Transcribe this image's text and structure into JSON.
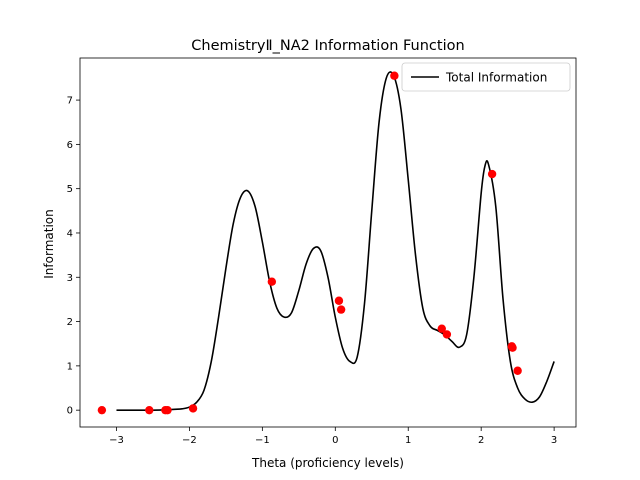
{
  "chart_data": {
    "type": "line",
    "title": "ChemistryⅡ_NA2 Information Function",
    "xlabel": "Theta (proficiency levels)",
    "ylabel": "Information",
    "xlim": [
      -3.5,
      3.3
    ],
    "ylim": [
      -0.38,
      7.95
    ],
    "xticks": [
      -3,
      -2,
      -1,
      0,
      1,
      2,
      3
    ],
    "yticks": [
      0,
      1,
      2,
      3,
      4,
      5,
      6,
      7
    ],
    "grid": false,
    "legend_position": "upper-right",
    "colors": {
      "line": "#000000",
      "points": "#ff0000",
      "frame": "#000000"
    },
    "series": [
      {
        "name": "Total Information",
        "x": [
          -3.0,
          -2.5,
          -2.3,
          -2.2,
          -2.1,
          -2.0,
          -1.9,
          -1.8,
          -1.7,
          -1.6,
          -1.5,
          -1.4,
          -1.3,
          -1.2,
          -1.1,
          -1.0,
          -0.9,
          -0.8,
          -0.7,
          -0.6,
          -0.5,
          -0.4,
          -0.3,
          -0.2,
          -0.1,
          0.0,
          0.1,
          0.2,
          0.3,
          0.4,
          0.5,
          0.6,
          0.7,
          0.8,
          0.9,
          1.0,
          1.1,
          1.2,
          1.3,
          1.4,
          1.5,
          1.6,
          1.7,
          1.8,
          1.9,
          2.0,
          2.05,
          2.1,
          2.2,
          2.3,
          2.4,
          2.5,
          2.6,
          2.7,
          2.8,
          2.9,
          3.0
        ],
        "y": [
          0.0,
          0.0,
          0.01,
          0.02,
          0.03,
          0.07,
          0.18,
          0.45,
          1.1,
          2.1,
          3.2,
          4.2,
          4.8,
          4.95,
          4.6,
          3.8,
          2.9,
          2.3,
          2.1,
          2.2,
          2.7,
          3.3,
          3.65,
          3.6,
          3.0,
          2.1,
          1.4,
          1.1,
          1.2,
          2.4,
          4.5,
          6.5,
          7.5,
          7.55,
          6.8,
          5.2,
          3.5,
          2.3,
          1.9,
          1.8,
          1.7,
          1.55,
          1.42,
          1.7,
          3.0,
          4.9,
          5.5,
          5.55,
          4.6,
          2.5,
          1.1,
          0.5,
          0.25,
          0.18,
          0.3,
          0.65,
          1.1
        ]
      }
    ],
    "points": {
      "x": [
        -3.2,
        -2.55,
        -2.33,
        -2.3,
        -1.95,
        -0.87,
        0.05,
        0.08,
        0.81,
        1.46,
        1.53,
        2.15,
        2.42,
        2.43,
        2.5
      ],
      "y": [
        0.0,
        0.0,
        0.0,
        0.0,
        0.04,
        2.9,
        2.47,
        2.27,
        7.55,
        1.84,
        1.71,
        5.33,
        1.44,
        1.41,
        0.89
      ]
    }
  }
}
